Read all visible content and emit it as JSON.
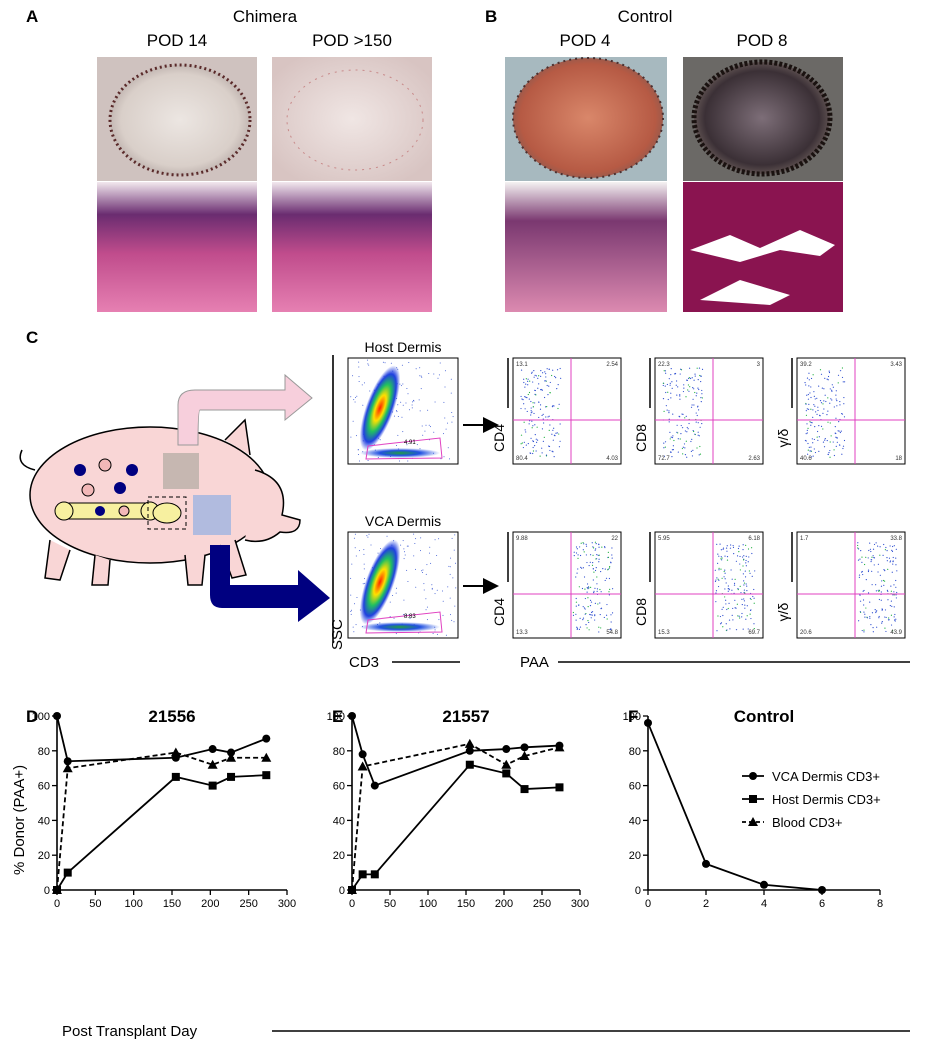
{
  "panels": {
    "a": {
      "label": "A",
      "title": "Chimera",
      "columns": [
        "POD 14",
        "POD >150"
      ]
    },
    "b": {
      "label": "B",
      "title": "Control",
      "columns": [
        "POD 4",
        "POD 8"
      ]
    },
    "c": {
      "label": "C",
      "y_axis": "SSC",
      "x_axis": "CD3",
      "paa_axis": "PAA",
      "rows": [
        {
          "title": "Host Dermis",
          "gate": "4.91",
          "plots": [
            {
              "marker": "CD4",
              "quadrants": [
                "13.1",
                "2.54",
                "80.4",
                "4.03"
              ]
            },
            {
              "marker": "CD8",
              "quadrants": [
                "22.3",
                "3",
                "72.7",
                "2.63"
              ]
            },
            {
              "marker": "γ/δ",
              "quadrants": [
                "39.2",
                "3.43",
                "40.6",
                "18"
              ]
            }
          ]
        },
        {
          "title": "VCA Dermis",
          "gate": "8.83",
          "plots": [
            {
              "marker": "CD4",
              "quadrants": [
                "9.88",
                "22",
                "13.3",
                "54.8"
              ]
            },
            {
              "marker": "CD8",
              "quadrants": [
                "5.95",
                "6.18",
                "15.3",
                "69.7"
              ]
            },
            {
              "marker": "γ/δ",
              "quadrants": [
                "1.7",
                "33.8",
                "20.6",
                "43.9"
              ]
            }
          ]
        }
      ]
    }
  },
  "chart_data": [
    {
      "type": "line",
      "label": "D",
      "title": "21556",
      "xlim": [
        0,
        300
      ],
      "xticks": [
        0,
        50,
        100,
        150,
        200,
        250,
        300
      ],
      "ylim": [
        0,
        100
      ],
      "yticks": [
        0,
        20,
        40,
        60,
        80,
        100
      ],
      "series": [
        {
          "name": "VCA Dermis CD3+",
          "color": "#000000",
          "marker": "circle",
          "dash": false,
          "x": [
            0,
            14,
            155,
            203,
            227,
            273
          ],
          "values": [
            100,
            74,
            76,
            81,
            79,
            87
          ]
        },
        {
          "name": "Host Dermis CD3+",
          "color": "#000000",
          "marker": "square",
          "dash": false,
          "x": [
            0,
            14,
            155,
            203,
            227,
            273
          ],
          "values": [
            0,
            10,
            65,
            60,
            65,
            66
          ]
        },
        {
          "name": "Blood CD3+",
          "color": "#000000",
          "marker": "triangle",
          "dash": true,
          "x": [
            0,
            14,
            155,
            203,
            227,
            273
          ],
          "values": [
            0,
            70,
            79,
            72,
            76,
            76
          ]
        }
      ]
    },
    {
      "type": "line",
      "label": "E",
      "title": "21557",
      "xlim": [
        0,
        300
      ],
      "xticks": [
        0,
        50,
        100,
        150,
        200,
        250,
        300
      ],
      "ylim": [
        0,
        100
      ],
      "yticks": [
        0,
        20,
        40,
        60,
        80,
        100
      ],
      "series": [
        {
          "color": "#000000",
          "marker": "circle",
          "dash": false,
          "x": [
            0,
            14,
            30,
            155,
            203,
            227,
            273
          ],
          "values": [
            100,
            78,
            60,
            80,
            81,
            82,
            83
          ]
        },
        {
          "color": "#000000",
          "marker": "square",
          "dash": false,
          "x": [
            0,
            14,
            30,
            155,
            203,
            227,
            273
          ],
          "values": [
            0,
            9,
            9,
            72,
            67,
            58,
            59
          ]
        },
        {
          "color": "#000000",
          "marker": "triangle",
          "dash": true,
          "x": [
            0,
            14,
            155,
            203,
            227,
            273
          ],
          "values": [
            0,
            71,
            84,
            72,
            77,
            82
          ]
        }
      ]
    },
    {
      "type": "line",
      "label": "F",
      "title": "Control",
      "xlim": [
        0,
        8
      ],
      "xticks": [
        0,
        2,
        4,
        6,
        8
      ],
      "ylim": [
        0,
        100
      ],
      "yticks": [
        0,
        20,
        40,
        60,
        80,
        100
      ],
      "series": [
        {
          "color": "#000000",
          "marker": "circle",
          "dash": false,
          "x": [
            0,
            2,
            4,
            6
          ],
          "values": [
            96,
            15,
            3,
            0
          ]
        }
      ]
    }
  ],
  "shared": {
    "y_label": "% Donor (PAA+)",
    "x_label": "Post Transplant Day"
  }
}
